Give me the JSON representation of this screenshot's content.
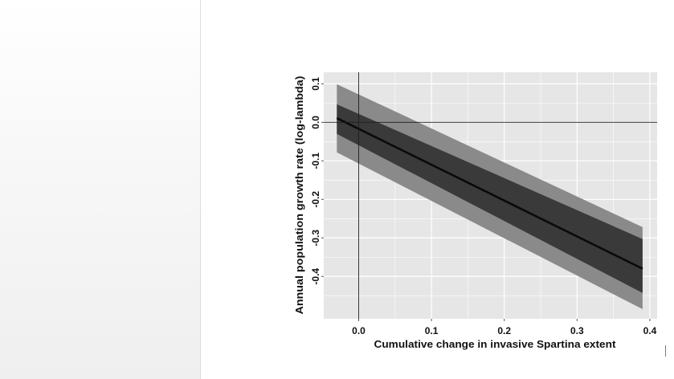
{
  "chart_data": {
    "type": "line",
    "title": "",
    "xlabel": "Cumulative change in invasive Spartina extent",
    "ylabel": "Annual population growth rate (log-lambda)",
    "xlim": [
      -0.048,
      0.41
    ],
    "ylim": [
      -0.51,
      0.13
    ],
    "x_ticks": [
      0,
      0.1,
      0.2,
      0.3,
      0.4
    ],
    "x_tick_labels": [
      "0.0",
      "0.1",
      "0.2",
      "0.3",
      "0.4"
    ],
    "y_ticks": [
      0.1,
      0,
      -0.1,
      -0.2,
      -0.3,
      -0.4
    ],
    "y_tick_labels": [
      "0.1",
      "0.0",
      "-0.1",
      "-0.2",
      "-0.3",
      "-0.4"
    ],
    "grid": true,
    "reference_lines": {
      "x": 0,
      "y": 0
    },
    "line": {
      "x": [
        -0.03,
        0.39
      ],
      "y": [
        0.011,
        -0.38
      ]
    },
    "bands": [
      {
        "x": [
          -0.03,
          0.39
        ],
        "upper": [
          0.099,
          -0.272
        ],
        "lower": [
          -0.078,
          -0.485
        ],
        "color": "#8a8a8a"
      },
      {
        "x": [
          -0.03,
          0.39
        ],
        "upper": [
          0.047,
          -0.303
        ],
        "lower": [
          -0.03,
          -0.443
        ],
        "color": "#3a3a3a"
      }
    ]
  },
  "colors": {
    "panel_background": "#e6e6e6",
    "grid": "#ffffff",
    "line": "#0a0a0a",
    "reference": "#1e1e1e",
    "left_panel": "#f4f4f4"
  }
}
